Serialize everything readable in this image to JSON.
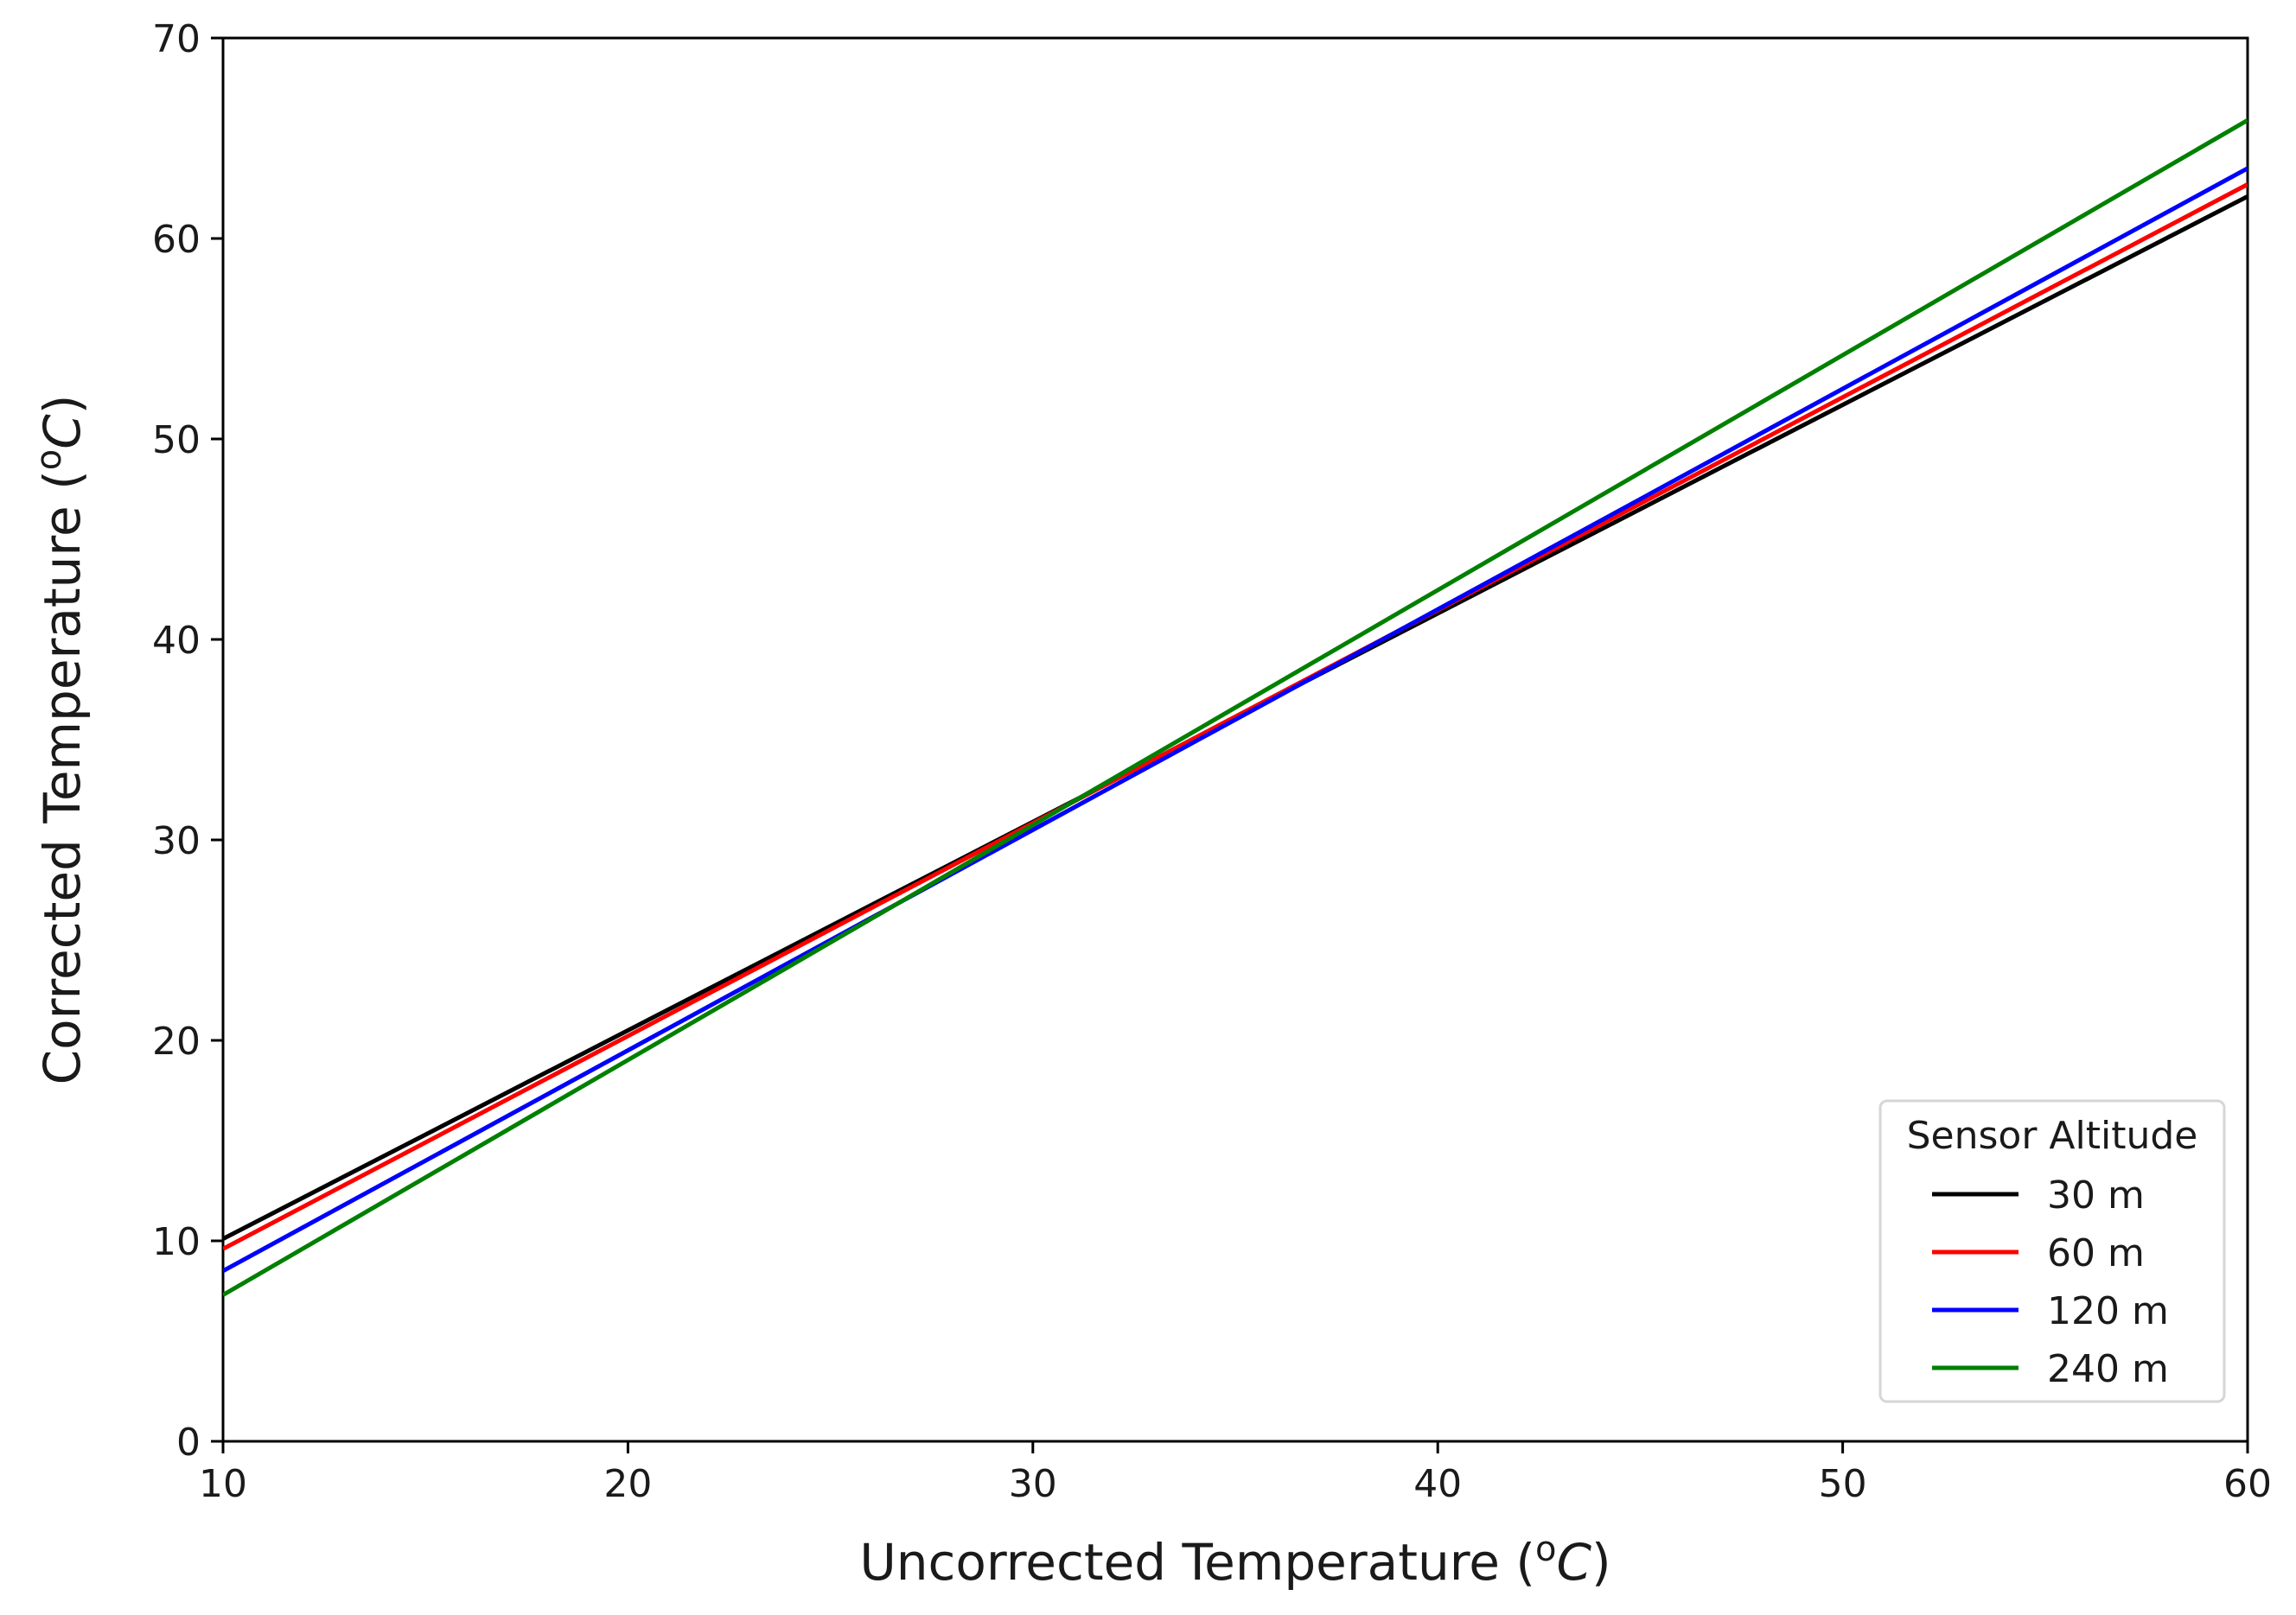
{
  "chart_data": {
    "type": "line",
    "title": "",
    "xlabel": {
      "prefix": "Uncorrected Temperature (",
      "sup": "o",
      "unit": "C",
      "suffix": ")"
    },
    "ylabel": {
      "prefix": "Corrected Temperature (",
      "sup": "o",
      "unit": "C",
      "suffix": ")"
    },
    "xlim": [
      10,
      60
    ],
    "ylim": [
      0,
      70
    ],
    "xticks": [
      10,
      20,
      30,
      40,
      50,
      60
    ],
    "yticks": [
      0,
      10,
      20,
      30,
      40,
      50,
      60,
      70
    ],
    "grid": false,
    "legend": {
      "title": "Sensor Altitude",
      "placement": "lower-right"
    },
    "series": [
      {
        "name": "30 m",
        "color": "#000000",
        "x": [
          10,
          60
        ],
        "y": [
          10.1,
          62.1
        ]
      },
      {
        "name": "60 m",
        "color": "#ff0000",
        "x": [
          10,
          60
        ],
        "y": [
          9.6,
          62.7
        ]
      },
      {
        "name": "120 m",
        "color": "#0000ff",
        "x": [
          10,
          60
        ],
        "y": [
          8.5,
          63.5
        ]
      },
      {
        "name": "240 m",
        "color": "#008000",
        "x": [
          10,
          60
        ],
        "y": [
          7.3,
          65.9
        ]
      }
    ]
  }
}
